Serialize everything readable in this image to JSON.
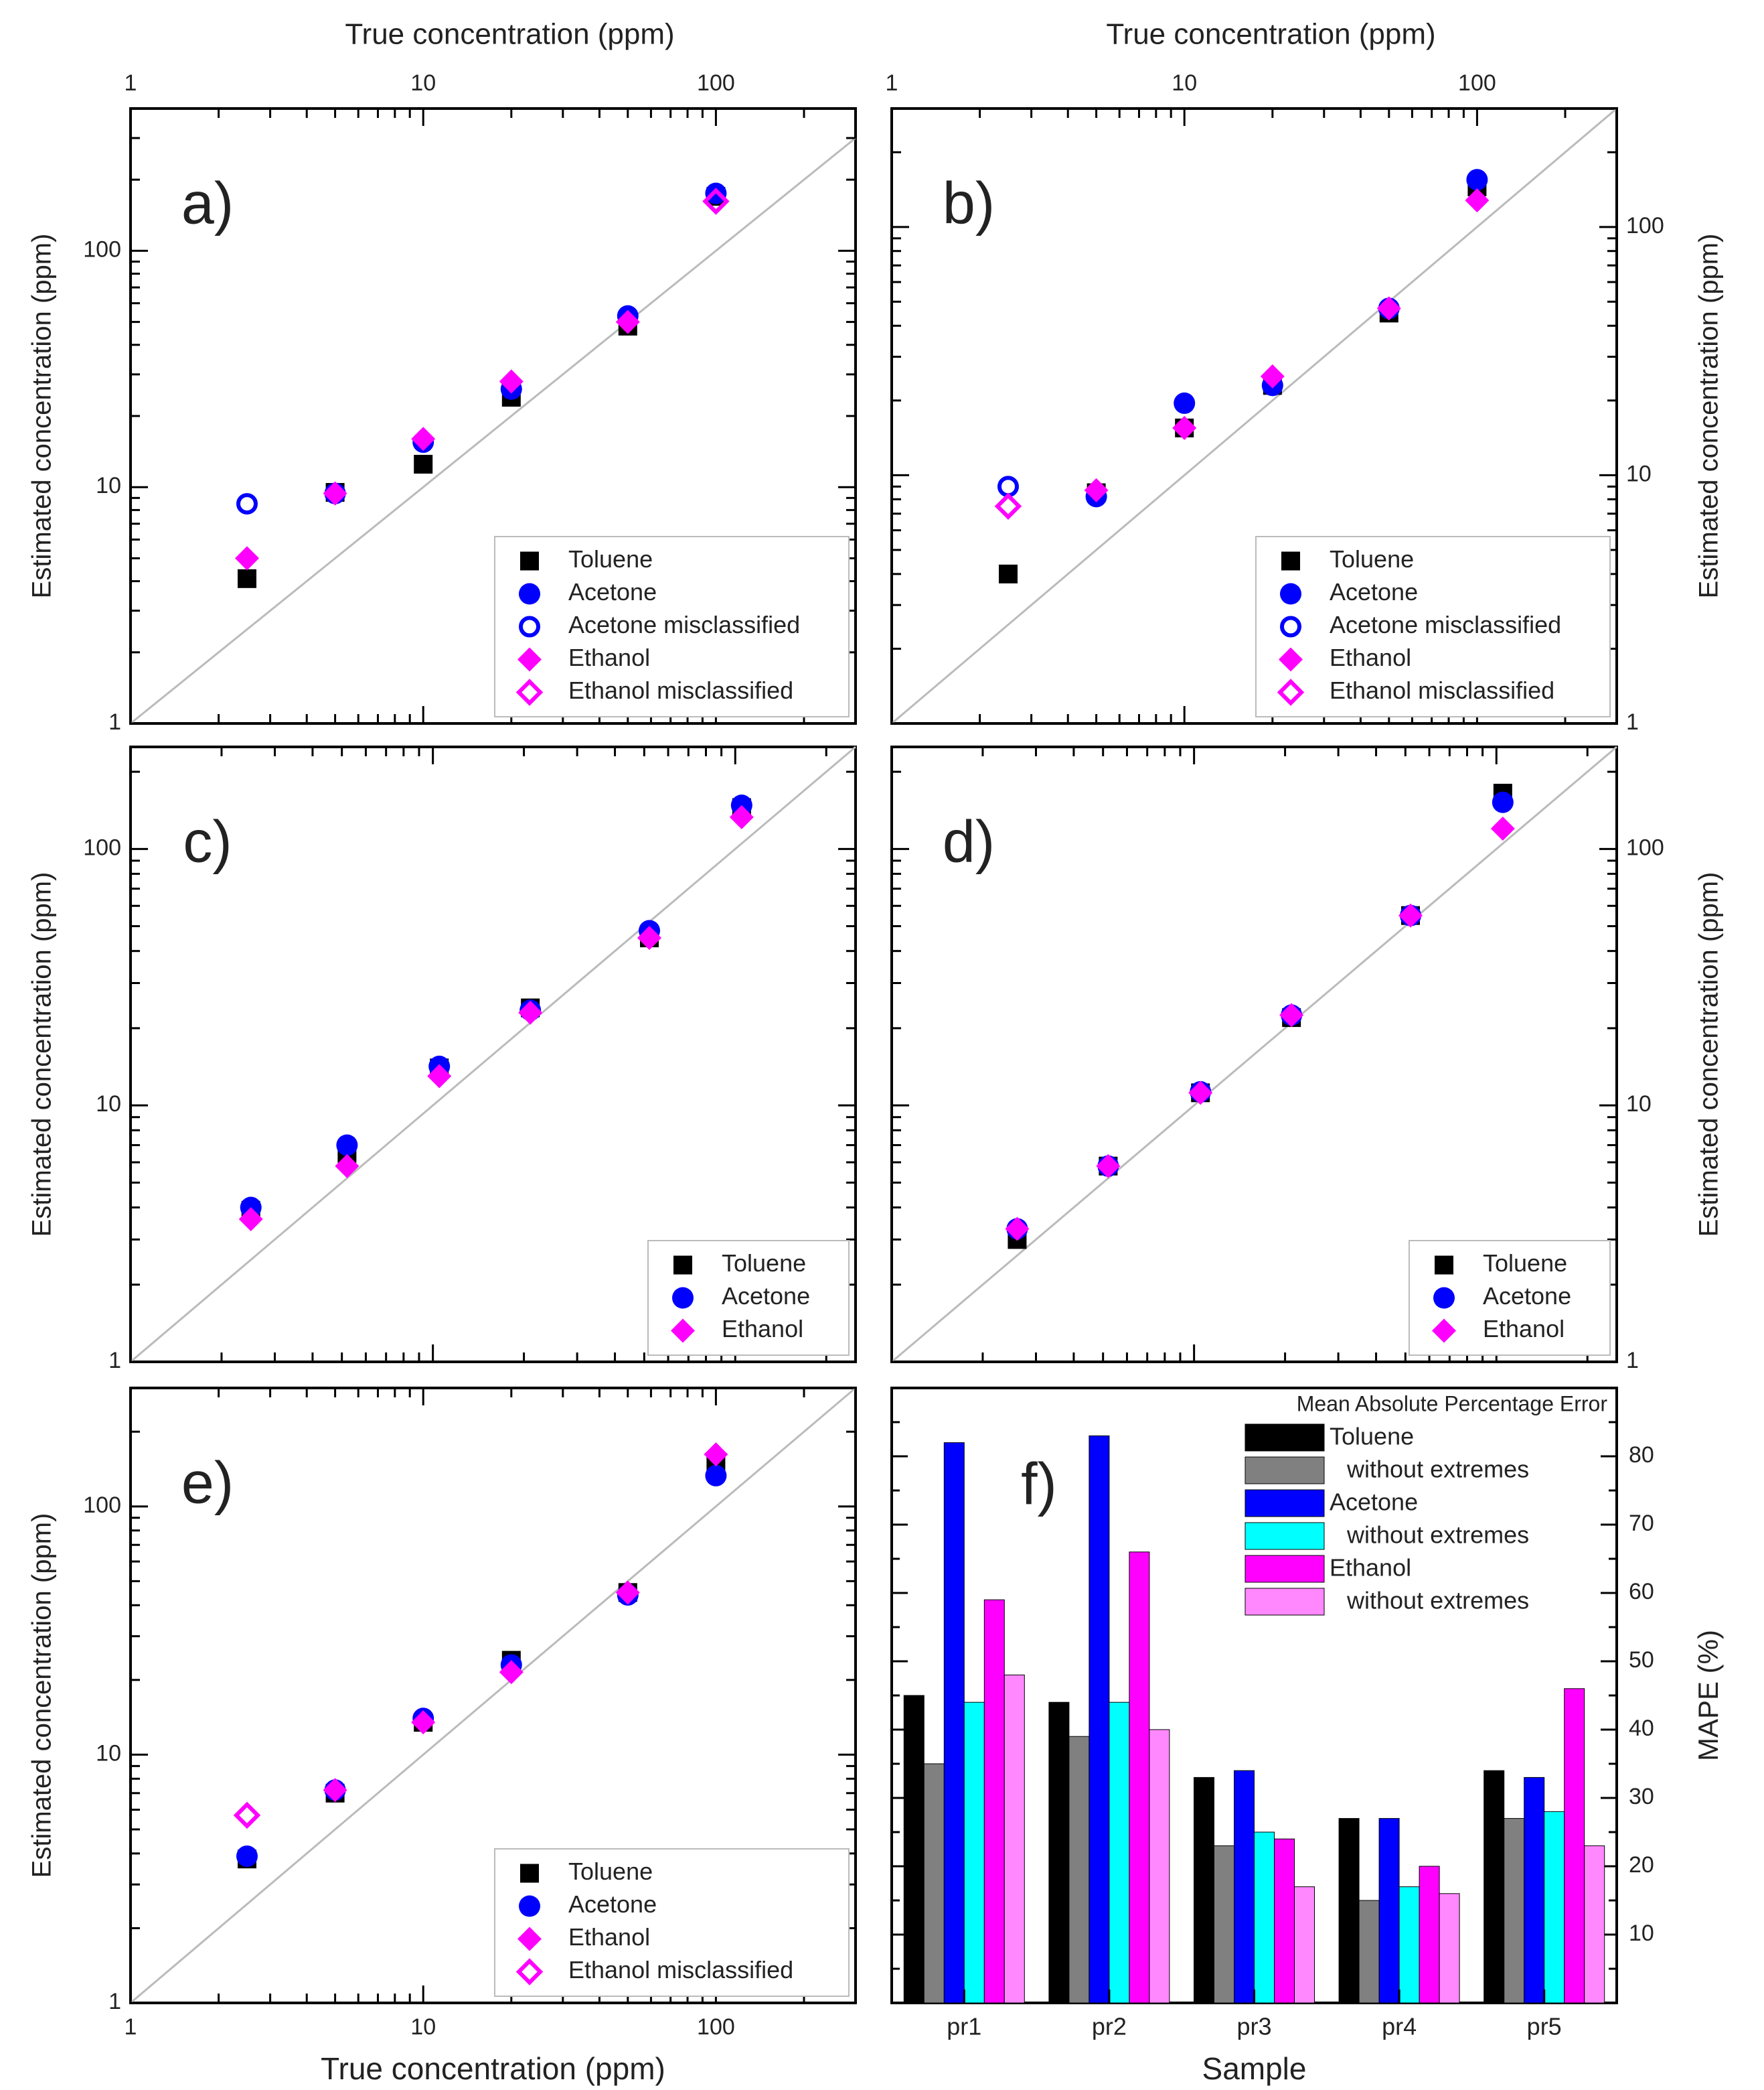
{
  "figure": {
    "top_axis_label": "True concentration (ppm)",
    "bottom_axis_label": "True concentration (ppm)",
    "y_axis_label": "Estimated concentration (ppm)",
    "x_ticks": [
      "1",
      "10",
      "100"
    ],
    "y_ticks": [
      "1",
      "10",
      "100"
    ]
  },
  "colors": {
    "toluene": "#000000",
    "acetone": "#0000ff",
    "ethanol": "#ff00ff",
    "toluene_light": "#808080",
    "acetone_light": "#00ffff",
    "ethanol_light": "#ff88ff",
    "diagonal": "#bbbbbb"
  },
  "chart_data": [
    {
      "panel": "a",
      "label": "a)",
      "type": "scatter",
      "xscale": "log",
      "yscale": "log",
      "xlim": [
        1,
        300
      ],
      "ylim": [
        1,
        400
      ],
      "legend": [
        "Toluene",
        "Acetone",
        "Acetone misclassified",
        "Ethanol",
        "Ethanol misclassified"
      ],
      "series": [
        {
          "name": "Toluene",
          "style": "filled-square",
          "color": "toluene",
          "x": [
            2.5,
            5,
            10,
            20,
            50,
            100
          ],
          "y": [
            4.1,
            9.5,
            12.5,
            24,
            48,
            170
          ]
        },
        {
          "name": "Acetone",
          "style": "filled-circle",
          "color": "acetone",
          "x": [
            5,
            10,
            20,
            50,
            100
          ],
          "y": [
            9.4,
            15.5,
            26,
            53,
            175
          ]
        },
        {
          "name": "Acetone misclassified",
          "style": "open-circle",
          "color": "acetone",
          "x": [
            2.5
          ],
          "y": [
            8.5
          ]
        },
        {
          "name": "Ethanol",
          "style": "filled-diamond",
          "color": "ethanol",
          "x": [
            2.5,
            5,
            10,
            20,
            50
          ],
          "y": [
            5.0,
            9.4,
            16,
            28,
            50
          ]
        },
        {
          "name": "Ethanol misclassified",
          "style": "open-diamond",
          "color": "ethanol",
          "x": [
            100
          ],
          "y": [
            162
          ]
        }
      ]
    },
    {
      "panel": "b",
      "label": "b)",
      "type": "scatter",
      "xscale": "log",
      "yscale": "log",
      "xlim": [
        1,
        300
      ],
      "ylim": [
        1,
        300
      ],
      "legend": [
        "Toluene",
        "Acetone",
        "Acetone misclassified",
        "Ethanol",
        "Ethanol misclassified"
      ],
      "series": [
        {
          "name": "Toluene",
          "style": "filled-square",
          "color": "toluene",
          "x": [
            2.5,
            5,
            10,
            20,
            50,
            100
          ],
          "y": [
            4.0,
            8.5,
            15.5,
            23,
            45,
            145
          ]
        },
        {
          "name": "Acetone",
          "style": "filled-circle",
          "color": "acetone",
          "x": [
            5,
            10,
            20,
            50,
            100
          ],
          "y": [
            8.2,
            19.5,
            23,
            47,
            155
          ]
        },
        {
          "name": "Acetone misclassified",
          "style": "open-circle",
          "color": "acetone",
          "x": [
            2.5
          ],
          "y": [
            9.0
          ]
        },
        {
          "name": "Ethanol",
          "style": "filled-diamond",
          "color": "ethanol",
          "x": [
            5,
            10,
            20,
            50,
            100
          ],
          "y": [
            8.7,
            15.5,
            25,
            47,
            128
          ]
        },
        {
          "name": "Ethanol misclassified",
          "style": "open-diamond",
          "color": "ethanol",
          "x": [
            2.5
          ],
          "y": [
            7.5
          ]
        }
      ]
    },
    {
      "panel": "c",
      "label": "c)",
      "type": "scatter",
      "xscale": "log",
      "yscale": "log",
      "xlim": [
        1,
        250
      ],
      "ylim": [
        1,
        250
      ],
      "legend": [
        "Toluene",
        "Acetone",
        "Ethanol"
      ],
      "series": [
        {
          "name": "Toluene",
          "style": "filled-square",
          "color": "toluene",
          "x": [
            2.5,
            5.2,
            10.5,
            21,
            52,
            105
          ],
          "y": [
            3.9,
            6.5,
            14,
            24,
            45,
            145
          ]
        },
        {
          "name": "Acetone",
          "style": "filled-circle",
          "color": "acetone",
          "x": [
            2.5,
            5.2,
            10.5,
            21,
            52,
            105
          ],
          "y": [
            4.0,
            7.0,
            14.2,
            23.5,
            48,
            148
          ]
        },
        {
          "name": "Ethanol",
          "style": "filled-diamond",
          "color": "ethanol",
          "x": [
            2.5,
            5.2,
            10.5,
            21,
            52,
            105
          ],
          "y": [
            3.6,
            5.8,
            13,
            23,
            45,
            133
          ]
        }
      ]
    },
    {
      "panel": "d",
      "label": "d)",
      "type": "scatter",
      "xscale": "log",
      "yscale": "log",
      "xlim": [
        1,
        250
      ],
      "ylim": [
        1,
        250
      ],
      "legend": [
        "Toluene",
        "Acetone",
        "Ethanol"
      ],
      "series": [
        {
          "name": "Toluene",
          "style": "filled-square",
          "color": "toluene",
          "x": [
            2.6,
            5.2,
            10.5,
            21,
            52,
            105
          ],
          "y": [
            3.0,
            5.8,
            11.2,
            22,
            55,
            165
          ]
        },
        {
          "name": "Acetone",
          "style": "filled-circle",
          "color": "acetone",
          "x": [
            2.6,
            5.2,
            10.5,
            21,
            52,
            105
          ],
          "y": [
            3.3,
            5.8,
            11.3,
            22.5,
            55,
            152
          ]
        },
        {
          "name": "Ethanol",
          "style": "filled-diamond",
          "color": "ethanol",
          "x": [
            2.6,
            5.2,
            10.5,
            21,
            52,
            105
          ],
          "y": [
            3.3,
            5.8,
            11.2,
            22.5,
            55,
            120
          ]
        }
      ]
    },
    {
      "panel": "e",
      "label": "e)",
      "type": "scatter",
      "xscale": "log",
      "yscale": "log",
      "xlim": [
        1,
        300
      ],
      "ylim": [
        1,
        300
      ],
      "xlabel": "True concentration (ppm)",
      "legend": [
        "Toluene",
        "Acetone",
        "Ethanol",
        "Ethanol misclassified"
      ],
      "series": [
        {
          "name": "Toluene",
          "style": "filled-square",
          "color": "toluene",
          "x": [
            2.5,
            5,
            10,
            20,
            50,
            100
          ],
          "y": [
            3.8,
            7.0,
            13.5,
            24,
            45,
            145
          ]
        },
        {
          "name": "Acetone",
          "style": "filled-circle",
          "color": "acetone",
          "x": [
            2.5,
            5,
            10,
            20,
            50,
            100
          ],
          "y": [
            3.9,
            7.2,
            14,
            23,
            44,
            133
          ]
        },
        {
          "name": "Ethanol",
          "style": "filled-diamond",
          "color": "ethanol",
          "x": [
            5,
            10,
            20,
            50,
            100
          ],
          "y": [
            7.2,
            13.5,
            21.5,
            45,
            162
          ]
        },
        {
          "name": "Ethanol misclassified",
          "style": "open-diamond",
          "color": "ethanol",
          "x": [
            2.5
          ],
          "y": [
            5.7
          ]
        }
      ]
    },
    {
      "panel": "f",
      "label": "f)",
      "type": "bar",
      "title": "Mean Absolute Percentage Error",
      "xlabel": "Sample",
      "ylabel": "MAPE (%)",
      "ylim": [
        0,
        90
      ],
      "yticks": [
        10,
        20,
        30,
        40,
        50,
        60,
        70,
        80
      ],
      "categories": [
        "pr1",
        "pr2",
        "pr3",
        "pr4",
        "pr5"
      ],
      "series": [
        {
          "name": "Toluene",
          "color": "toluene",
          "values": [
            45,
            44,
            33,
            27,
            34
          ]
        },
        {
          "name": "without extremes",
          "color": "toluene_light",
          "values": [
            35,
            39,
            23,
            15,
            27
          ]
        },
        {
          "name": "Acetone",
          "color": "acetone",
          "values": [
            82,
            83,
            34,
            27,
            33
          ]
        },
        {
          "name": "without extremes",
          "color": "acetone_light",
          "values": [
            44,
            44,
            25,
            17,
            28
          ]
        },
        {
          "name": "Ethanol",
          "color": "ethanol",
          "values": [
            59,
            66,
            24,
            20,
            46
          ]
        },
        {
          "name": "without extremes",
          "color": "ethanol_light",
          "values": [
            48,
            40,
            17,
            16,
            23
          ]
        }
      ]
    }
  ]
}
